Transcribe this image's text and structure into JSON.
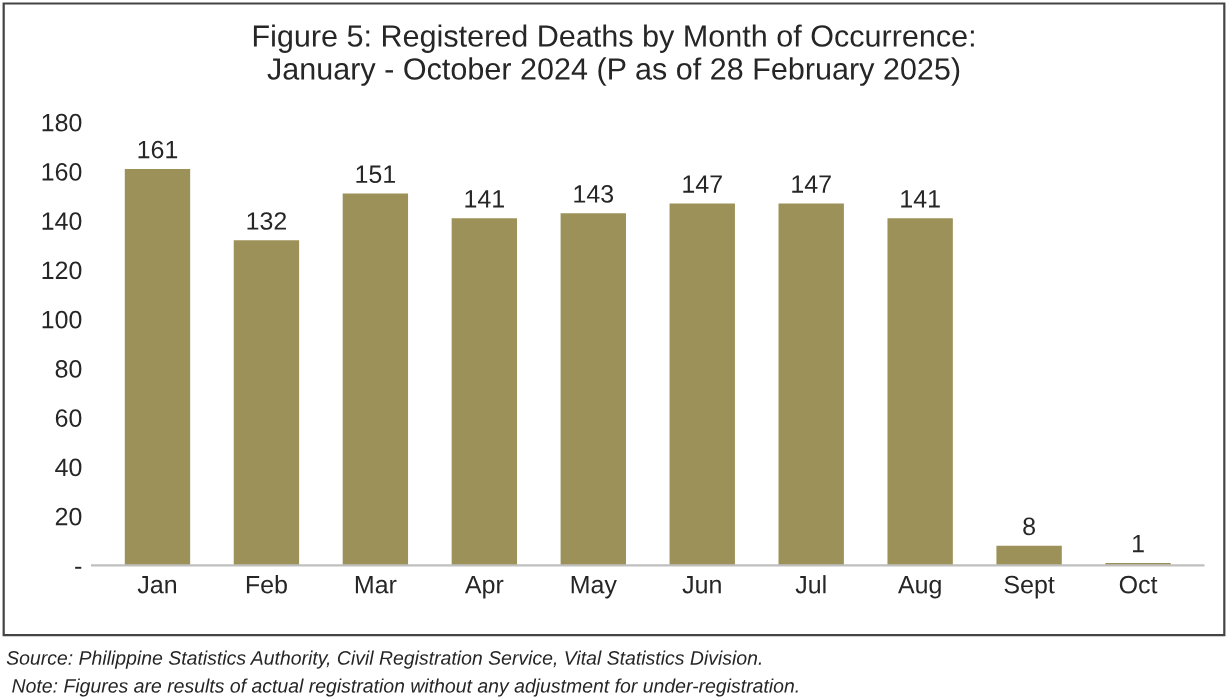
{
  "chart_data": {
    "type": "bar",
    "title": "Figure 5: Registered Deaths by Month of Occurrence:\nJanuary - October 2024 (P as of 28 February 2025)",
    "categories": [
      "Jan",
      "Feb",
      "Mar",
      "Apr",
      "May",
      "Jun",
      "Jul",
      "Aug",
      "Sept",
      "Oct"
    ],
    "values": [
      161,
      132,
      151,
      141,
      143,
      147,
      147,
      141,
      8,
      1
    ],
    "color": "#9c9158",
    "ylim": [
      0,
      180
    ],
    "yticks": [
      {
        "value": 0,
        "label": "-"
      },
      20,
      40,
      60,
      80,
      100,
      120,
      140,
      160,
      180
    ],
    "data_labels": true,
    "grid": false,
    "annotations": [
      "Source: Philippine Statistics Authority, Civil Registration Service, Vital Statistics Division.",
      " Note: Figures are results of actual registration without any adjustment for under-registration."
    ]
  }
}
